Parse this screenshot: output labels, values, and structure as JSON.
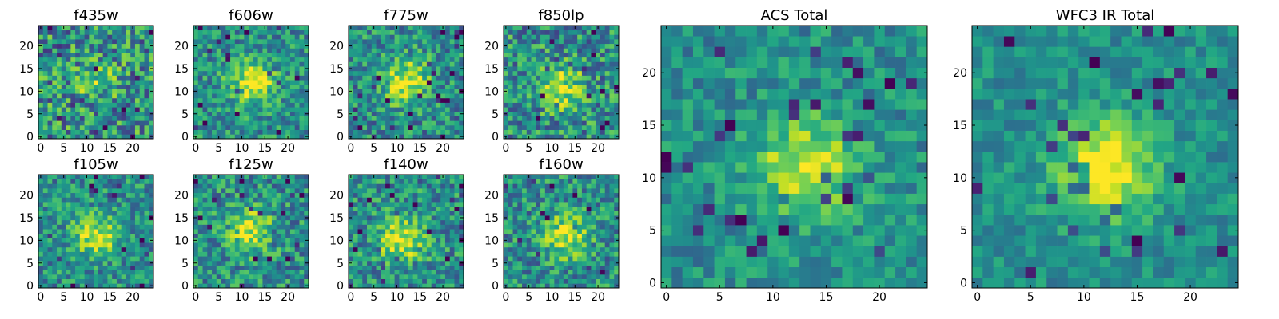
{
  "figure": {
    "colormap": "viridis",
    "colors": {
      "low": "#440154",
      "mid": "#21918c",
      "high": "#fde725"
    }
  },
  "chart_data": [
    {
      "type": "heatmap",
      "title": "f435w",
      "grid": [
        25,
        25
      ],
      "xlim": [
        0,
        24
      ],
      "ylim": [
        0,
        24
      ],
      "xticks": [
        0,
        5,
        10,
        15,
        20
      ],
      "yticks": [
        0,
        5,
        10,
        15,
        20
      ],
      "source": {
        "x": 12,
        "y": 12
      },
      "peak_strength": 0.22,
      "noise": 0.42
    },
    {
      "type": "heatmap",
      "title": "f606w",
      "grid": [
        25,
        25
      ],
      "xlim": [
        0,
        24
      ],
      "ylim": [
        0,
        24
      ],
      "xticks": [
        0,
        5,
        10,
        15,
        20
      ],
      "yticks": [
        0,
        5,
        10,
        15,
        20
      ],
      "source": {
        "x": 12,
        "y": 12
      },
      "peak_strength": 0.55,
      "noise": 0.3
    },
    {
      "type": "heatmap",
      "title": "f775w",
      "grid": [
        25,
        25
      ],
      "xlim": [
        0,
        24
      ],
      "ylim": [
        0,
        24
      ],
      "xticks": [
        0,
        5,
        10,
        15,
        20
      ],
      "yticks": [
        0,
        5,
        10,
        15,
        20
      ],
      "source": {
        "x": 12,
        "y": 12
      },
      "peak_strength": 0.5,
      "noise": 0.32
    },
    {
      "type": "heatmap",
      "title": "f850lp",
      "grid": [
        25,
        25
      ],
      "xlim": [
        0,
        24
      ],
      "ylim": [
        0,
        24
      ],
      "xticks": [
        0,
        5,
        10,
        15,
        20
      ],
      "yticks": [
        0,
        5,
        10,
        15,
        20
      ],
      "source": {
        "x": 12,
        "y": 11
      },
      "peak_strength": 0.4,
      "noise": 0.38
    },
    {
      "type": "heatmap",
      "title": "f105w",
      "grid": [
        25,
        25
      ],
      "xlim": [
        0,
        24
      ],
      "ylim": [
        0,
        24
      ],
      "xticks": [
        0,
        5,
        10,
        15,
        20
      ],
      "yticks": [
        0,
        5,
        10,
        15,
        20
      ],
      "source": {
        "x": 12,
        "y": 11
      },
      "peak_strength": 0.45,
      "noise": 0.3
    },
    {
      "type": "heatmap",
      "title": "f125w",
      "grid": [
        25,
        25
      ],
      "xlim": [
        0,
        24
      ],
      "ylim": [
        0,
        24
      ],
      "xticks": [
        0,
        5,
        10,
        15,
        20
      ],
      "yticks": [
        0,
        5,
        10,
        15,
        20
      ],
      "source": {
        "x": 12,
        "y": 12
      },
      "peak_strength": 0.45,
      "noise": 0.32
    },
    {
      "type": "heatmap",
      "title": "f140w",
      "grid": [
        25,
        25
      ],
      "xlim": [
        0,
        24
      ],
      "ylim": [
        0,
        24
      ],
      "xticks": [
        0,
        5,
        10,
        15,
        20
      ],
      "yticks": [
        0,
        5,
        10,
        15,
        20
      ],
      "source": {
        "x": 11,
        "y": 10
      },
      "peak_strength": 0.5,
      "noise": 0.32
    },
    {
      "type": "heatmap",
      "title": "f160w",
      "grid": [
        25,
        25
      ],
      "xlim": [
        0,
        24
      ],
      "ylim": [
        0,
        24
      ],
      "xticks": [
        0,
        5,
        10,
        15,
        20
      ],
      "yticks": [
        0,
        5,
        10,
        15,
        20
      ],
      "source": {
        "x": 13,
        "y": 11
      },
      "peak_strength": 0.45,
      "noise": 0.32
    },
    {
      "type": "heatmap",
      "title": "ACS Total",
      "grid": [
        25,
        25
      ],
      "xlim": [
        0,
        24
      ],
      "ylim": [
        0,
        24
      ],
      "xticks": [
        0,
        5,
        10,
        15,
        20
      ],
      "yticks": [
        0,
        5,
        10,
        15,
        20
      ],
      "source": {
        "x": 13,
        "y": 11
      },
      "peak_strength": 0.45,
      "noise": 0.22
    },
    {
      "type": "heatmap",
      "title": "WFC3 IR Total",
      "grid": [
        25,
        25
      ],
      "xlim": [
        0,
        24
      ],
      "ylim": [
        0,
        24
      ],
      "xticks": [
        0,
        5,
        10,
        15,
        20
      ],
      "yticks": [
        0,
        5,
        10,
        15,
        20
      ],
      "source": {
        "x": 12,
        "y": 11
      },
      "peak_strength": 0.55,
      "noise": 0.18
    }
  ]
}
